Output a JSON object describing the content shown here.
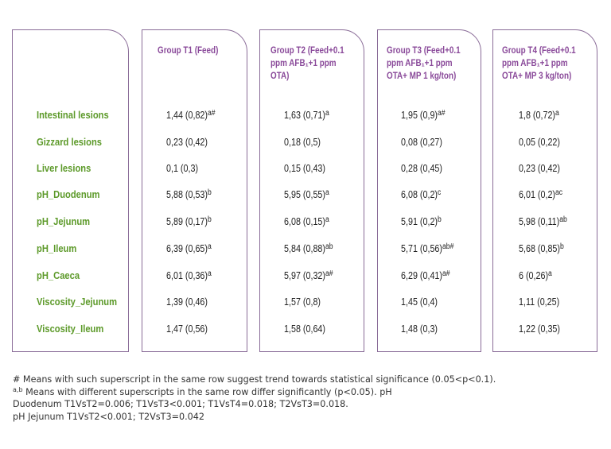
{
  "columns": [
    {
      "lines": [
        "Group T1 (Feed)"
      ]
    },
    {
      "lines": [
        "Group T2 (Feed+0.1",
        "ppm AFB₁+1 ppm",
        "OTA)"
      ]
    },
    {
      "lines": [
        "Group T3 (Feed+0.1",
        "ppm AFB₁+1 ppm",
        "OTA+ MP 1 kg/ton)"
      ]
    },
    {
      "lines": [
        "Group T4 (Feed+0.1",
        "ppm AFB₁+1 ppm",
        "OTA+ MP 3 kg/ton)"
      ]
    }
  ],
  "rows": [
    {
      "label": "Intestinal lesions",
      "cells": [
        {
          "v": "1,44 (0,82)",
          "s": "a#"
        },
        {
          "v": "1,63 (0,71)",
          "s": "a"
        },
        {
          "v": "1,95 (0,9)",
          "s": "a#"
        },
        {
          "v": "1,8 (0,72)",
          "s": "a"
        }
      ]
    },
    {
      "label": "Gizzard lesions",
      "cells": [
        {
          "v": "0,23 (0,42)",
          "s": ""
        },
        {
          "v": "0,18 (0,5)",
          "s": ""
        },
        {
          "v": "0,08 (0,27)",
          "s": ""
        },
        {
          "v": "0,05 (0,22)",
          "s": ""
        }
      ]
    },
    {
      "label": "Liver lesions",
      "cells": [
        {
          "v": "0,1 (0,3)",
          "s": ""
        },
        {
          "v": "0,15 (0,43)",
          "s": ""
        },
        {
          "v": "0,28 (0,45)",
          "s": ""
        },
        {
          "v": "0,23 (0,42)",
          "s": ""
        }
      ]
    },
    {
      "label": "pH_Duodenum",
      "cells": [
        {
          "v": "5,88 (0,53)",
          "s": "b"
        },
        {
          "v": "5,95 (0,55)",
          "s": "a"
        },
        {
          "v": "6,08 (0,2)",
          "s": "c"
        },
        {
          "v": "6,01 (0,2)",
          "s": "ac"
        }
      ]
    },
    {
      "label": "pH_Jejunum",
      "cells": [
        {
          "v": "5,89 (0,17)",
          "s": "b"
        },
        {
          "v": "6,08 (0,15)",
          "s": "a"
        },
        {
          "v": "5,91 (0,2)",
          "s": "b"
        },
        {
          "v": "5,98 (0,11)",
          "s": "ab"
        }
      ]
    },
    {
      "label": "pH_Ileum",
      "cells": [
        {
          "v": "6,39 (0,65)",
          "s": "a"
        },
        {
          "v": "5,84 (0,88)",
          "s": "ab"
        },
        {
          "v": "5,71 (0,56)",
          "s": "ab#"
        },
        {
          "v": "5,68 (0,85)",
          "s": "b"
        }
      ]
    },
    {
      "label": "pH_Caeca",
      "cells": [
        {
          "v": "6,01 (0,36)",
          "s": "a"
        },
        {
          "v": "5,97 (0,32)",
          "s": "a#"
        },
        {
          "v": "6,29 (0,41)",
          "s": "a#"
        },
        {
          "v": "6 (0,26)",
          "s": "a"
        }
      ]
    },
    {
      "label": "Viscosity_Jejunum",
      "cells": [
        {
          "v": "1,39 (0,46)",
          "s": ""
        },
        {
          "v": "1,57 (0,8)",
          "s": ""
        },
        {
          "v": "1,45 (0,4)",
          "s": ""
        },
        {
          "v": "1,11 (0,25)",
          "s": ""
        }
      ]
    },
    {
      "label": "Viscosity_Ileum",
      "cells": [
        {
          "v": "1,47 (0,56)",
          "s": ""
        },
        {
          "v": "1,58 (0,64)",
          "s": ""
        },
        {
          "v": "1,48 (0,3)",
          "s": ""
        },
        {
          "v": "1,22 (0,35)",
          "s": ""
        }
      ]
    }
  ],
  "notes": {
    "line1": "# Means with such superscript in the same row suggest trend towards statistical significance (0.05<p<0.1).",
    "line2_sup": "a,b",
    "line2": " Means with different superscripts in the same row differ significantly (p<0.05). pH",
    "line3": "Duodenum T1VsT2=0.006; T1VsT3<0.001; T1VsT4=0.018; T2VsT3=0.018.",
    "line4": "pH Jejunum T1VsT2<0.001; T2VsT3=0.042"
  },
  "colors": {
    "label": "#5d9a2a",
    "header": "#8a4a9a",
    "border": "#8a6c98"
  }
}
